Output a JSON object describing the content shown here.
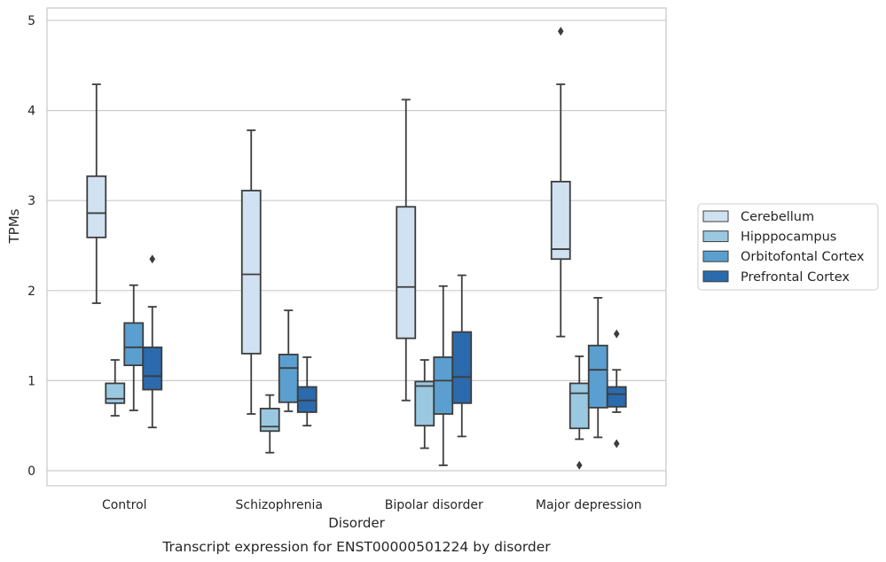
{
  "caption": "Transcript expression for ENST00000501224 by disorder",
  "chart_data": {
    "type": "box",
    "title": "",
    "xlabel": "Disorder",
    "ylabel": "TPMs",
    "ylim": [
      -0.15,
      5.15
    ],
    "yticks": [
      0,
      1,
      2,
      3,
      4,
      5
    ],
    "grid": "horizontal",
    "legend_position": "right",
    "categories": [
      "Control",
      "Schizophrenia",
      "Bipolar disorder",
      "Major depression"
    ],
    "series": [
      {
        "name": "Cerebellum",
        "color": "#d0e1f2",
        "boxes": [
          {
            "whislo": 1.86,
            "q1": 2.59,
            "med": 2.86,
            "q3": 3.27,
            "whishi": 4.29,
            "fliers": []
          },
          {
            "whislo": 0.63,
            "q1": 1.3,
            "med": 2.18,
            "q3": 3.11,
            "whishi": 3.78,
            "fliers": []
          },
          {
            "whislo": 0.78,
            "q1": 1.47,
            "med": 2.04,
            "q3": 2.93,
            "whishi": 4.12,
            "fliers": []
          },
          {
            "whislo": 1.49,
            "q1": 2.35,
            "med": 2.46,
            "q3": 3.21,
            "whishi": 4.29,
            "fliers": [
              4.88
            ]
          }
        ]
      },
      {
        "name": "Hipppocampus",
        "color": "#9ac8e0",
        "boxes": [
          {
            "whislo": 0.61,
            "q1": 0.75,
            "med": 0.8,
            "q3": 0.97,
            "whishi": 1.23,
            "fliers": []
          },
          {
            "whislo": 0.2,
            "q1": 0.44,
            "med": 0.49,
            "q3": 0.69,
            "whishi": 0.84,
            "fliers": []
          },
          {
            "whislo": 0.25,
            "q1": 0.5,
            "med": 0.94,
            "q3": 0.99,
            "whishi": 1.23,
            "fliers": []
          },
          {
            "whislo": 0.35,
            "q1": 0.47,
            "med": 0.86,
            "q3": 0.97,
            "whishi": 1.27,
            "fliers": [
              0.06
            ]
          }
        ]
      },
      {
        "name": "Orbitofontal Cortex",
        "color": "#5a9fcf",
        "boxes": [
          {
            "whislo": 0.67,
            "q1": 1.17,
            "med": 1.37,
            "q3": 1.64,
            "whishi": 2.06,
            "fliers": []
          },
          {
            "whislo": 0.66,
            "q1": 0.76,
            "med": 1.14,
            "q3": 1.29,
            "whishi": 1.78,
            "fliers": []
          },
          {
            "whislo": 0.06,
            "q1": 0.63,
            "med": 1.0,
            "q3": 1.26,
            "whishi": 2.05,
            "fliers": []
          },
          {
            "whislo": 0.37,
            "q1": 0.7,
            "med": 1.12,
            "q3": 1.39,
            "whishi": 1.92,
            "fliers": []
          }
        ]
      },
      {
        "name": "Prefrontal Cortex",
        "color": "#2b6aac",
        "boxes": [
          {
            "whislo": 0.48,
            "q1": 0.9,
            "med": 1.05,
            "q3": 1.37,
            "whishi": 1.82,
            "fliers": [
              2.35
            ]
          },
          {
            "whislo": 0.5,
            "q1": 0.65,
            "med": 0.78,
            "q3": 0.93,
            "whishi": 1.26,
            "fliers": []
          },
          {
            "whislo": 0.38,
            "q1": 0.75,
            "med": 1.04,
            "q3": 1.54,
            "whishi": 2.17,
            "fliers": []
          },
          {
            "whislo": 0.65,
            "q1": 0.71,
            "med": 0.85,
            "q3": 0.93,
            "whishi": 1.12,
            "fliers": [
              1.52,
              0.3
            ]
          }
        ]
      }
    ]
  }
}
